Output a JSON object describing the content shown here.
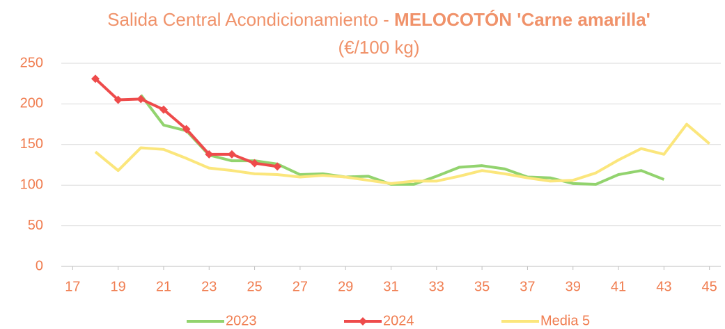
{
  "chart_data": {
    "type": "line",
    "title_parts": [
      {
        "text": "Salida Central Acondicionamiento - ",
        "bold": false
      },
      {
        "text": "MELOCOTÓN 'Carne amarilla'",
        "bold": true
      },
      {
        "text": " (€/100 kg)",
        "bold": false
      }
    ],
    "x": [
      18,
      19,
      20,
      21,
      22,
      23,
      24,
      25,
      26,
      27,
      28,
      29,
      30,
      31,
      32,
      33,
      34,
      35,
      36,
      37,
      38,
      39,
      40,
      41,
      42,
      43,
      44,
      45
    ],
    "series": [
      {
        "name": "2023",
        "color": "#92d36e",
        "values": [
          null,
          null,
          211,
          174,
          167,
          137,
          130,
          130,
          126,
          113,
          114,
          110,
          111,
          101,
          101,
          111,
          122,
          124,
          120,
          110,
          109,
          102,
          101,
          113,
          118,
          107,
          null,
          null
        ]
      },
      {
        "name": "2024",
        "color": "#ee4b4b",
        "marker": "diamond",
        "values": [
          231,
          205,
          206,
          193,
          169,
          138,
          138,
          127,
          123,
          null,
          null,
          null,
          null,
          null,
          null,
          null,
          null,
          null,
          null,
          null,
          null,
          null,
          null,
          null,
          null,
          null,
          null,
          null
        ]
      },
      {
        "name": "Media 5",
        "color": "#fbe67c",
        "values": [
          141,
          118,
          146,
          144,
          133,
          121,
          118,
          114,
          113,
          110,
          112,
          110,
          106,
          102,
          105,
          105,
          111,
          118,
          114,
          109,
          105,
          106,
          115,
          131,
          145,
          138,
          175,
          151
        ]
      }
    ],
    "xlim": [
      16.5,
      45.5
    ],
    "xticks": [
      17,
      19,
      21,
      23,
      25,
      27,
      29,
      31,
      33,
      35,
      37,
      39,
      41,
      43,
      45
    ],
    "ylim": [
      0,
      250
    ],
    "yticks": [
      0,
      50,
      100,
      150,
      200,
      250
    ],
    "grid": true,
    "legend": "bottom"
  }
}
